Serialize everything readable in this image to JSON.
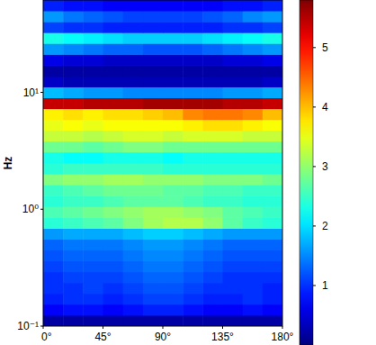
{
  "chart_data": {
    "type": "heatmap",
    "y_label": "Hz",
    "log": "y",
    "x": [
      7.5,
      22.5,
      37.5,
      52.5,
      67.5,
      82.5,
      97.5,
      112.5,
      127.5,
      142.5,
      157.5,
      172.5
    ],
    "y": [
      0.111,
      0.138,
      0.171,
      0.211,
      0.262,
      0.324,
      0.402,
      0.497,
      0.617,
      0.764,
      0.946,
      1.17,
      1.46,
      1.8,
      2.23,
      2.77,
      3.43,
      4.25,
      5.26,
      6.52,
      8.07,
      10.0,
      12.4,
      15.3,
      19.0,
      23.6,
      29.2,
      36.1,
      44.8,
      55.5
    ],
    "xlim": [
      0,
      180
    ],
    "ylim": [
      0.1,
      61.7
    ],
    "xticks": [
      {
        "value": 0,
        "label": "0°"
      },
      {
        "value": 45,
        "label": "45°"
      },
      {
        "value": 90,
        "label": "90°"
      },
      {
        "value": 135,
        "label": "135°"
      },
      {
        "value": 180,
        "label": "180°"
      }
    ],
    "yticks": [
      {
        "value": 0.1,
        "label": "10⁻¹"
      },
      {
        "value": 1,
        "label": "10⁰"
      },
      {
        "value": 10,
        "label": "10¹"
      }
    ],
    "colorbar": {
      "range": [
        0,
        5.8
      ],
      "ticks": [
        1,
        2,
        3,
        4,
        5
      ]
    },
    "values": [
      [
        0.2,
        0.2,
        0.2,
        0.2,
        0.2,
        0.2,
        0.2,
        0.2,
        0.2,
        0.2,
        0.2,
        0.2
      ],
      [
        0.7,
        0.8,
        0.8,
        0.7,
        0.8,
        0.9,
        0.9,
        0.8,
        0.7,
        0.7,
        0.8,
        0.7
      ],
      [
        0.9,
        1.0,
        1.0,
        0.9,
        1.0,
        1.1,
        1.1,
        1.0,
        0.9,
        0.9,
        1.0,
        0.9
      ],
      [
        1.0,
        1.0,
        1.1,
        1.0,
        1.1,
        1.2,
        1.2,
        1.1,
        1.0,
        1.0,
        1.0,
        0.9
      ],
      [
        1.0,
        1.1,
        1.1,
        1.1,
        1.2,
        1.3,
        1.3,
        1.2,
        1.1,
        1.0,
        1.0,
        1.0
      ],
      [
        1.1,
        1.2,
        1.2,
        1.2,
        1.3,
        1.4,
        1.4,
        1.3,
        1.2,
        1.1,
        1.1,
        1.1
      ],
      [
        1.2,
        1.3,
        1.3,
        1.3,
        1.4,
        1.5,
        1.5,
        1.4,
        1.3,
        1.2,
        1.2,
        1.2
      ],
      [
        1.3,
        1.4,
        1.4,
        1.4,
        1.5,
        1.6,
        1.6,
        1.5,
        1.4,
        1.3,
        1.3,
        1.3
      ],
      [
        1.6,
        1.7,
        1.7,
        1.7,
        1.8,
        1.9,
        1.9,
        1.8,
        1.7,
        1.6,
        1.6,
        1.6
      ],
      [
        2.4,
        2.5,
        2.6,
        2.7,
        2.9,
        3.1,
        3.2,
        3.2,
        3.0,
        2.7,
        2.5,
        2.4
      ],
      [
        2.6,
        2.7,
        2.8,
        2.9,
        3.0,
        3.1,
        3.1,
        3.0,
        2.9,
        2.7,
        2.6,
        2.5
      ],
      [
        2.4,
        2.5,
        2.5,
        2.6,
        2.7,
        2.7,
        2.7,
        2.6,
        2.5,
        2.5,
        2.4,
        2.4
      ],
      [
        2.5,
        2.6,
        2.7,
        2.8,
        2.8,
        2.8,
        2.7,
        2.7,
        2.6,
        2.6,
        2.5,
        2.5
      ],
      [
        2.9,
        3.0,
        3.0,
        3.1,
        3.1,
        3.0,
        3.0,
        3.0,
        2.9,
        2.9,
        2.9,
        2.8
      ],
      [
        2.4,
        2.5,
        2.5,
        2.5,
        2.5,
        2.5,
        2.4,
        2.4,
        2.4,
        2.4,
        2.4,
        2.4
      ],
      [
        2.3,
        2.2,
        2.2,
        2.3,
        2.3,
        2.3,
        2.2,
        2.3,
        2.3,
        2.3,
        2.3,
        2.3
      ],
      [
        2.8,
        2.8,
        2.7,
        2.8,
        2.9,
        2.9,
        2.8,
        2.8,
        2.8,
        2.8,
        2.8,
        2.8
      ],
      [
        3.3,
        3.3,
        3.2,
        3.3,
        3.4,
        3.4,
        3.3,
        3.4,
        3.4,
        3.4,
        3.3,
        3.3
      ],
      [
        3.5,
        3.6,
        3.5,
        3.6,
        3.6,
        3.6,
        3.6,
        3.7,
        3.8,
        3.8,
        3.7,
        3.6
      ],
      [
        3.7,
        3.8,
        3.7,
        3.8,
        3.8,
        3.9,
        4.0,
        4.3,
        4.4,
        4.4,
        4.3,
        4.0
      ],
      [
        5.4,
        5.4,
        5.5,
        5.5,
        5.5,
        5.6,
        5.6,
        5.6,
        5.6,
        5.5,
        5.5,
        5.4
      ],
      [
        1.8,
        1.7,
        1.6,
        1.6,
        1.5,
        1.5,
        1.5,
        1.5,
        1.5,
        1.6,
        1.6,
        1.7
      ],
      [
        0.4,
        0.3,
        0.3,
        0.3,
        0.3,
        0.3,
        0.3,
        0.3,
        0.3,
        0.3,
        0.3,
        0.4
      ],
      [
        0.2,
        0.2,
        0.2,
        0.2,
        0.2,
        0.2,
        0.2,
        0.2,
        0.2,
        0.2,
        0.2,
        0.2
      ],
      [
        0.6,
        0.5,
        0.5,
        0.4,
        0.4,
        0.4,
        0.4,
        0.4,
        0.4,
        0.5,
        0.5,
        0.6
      ],
      [
        1.6,
        1.5,
        1.4,
        1.3,
        1.3,
        1.2,
        1.2,
        1.2,
        1.3,
        1.4,
        1.5,
        1.6
      ],
      [
        2.3,
        2.2,
        2.1,
        2.0,
        1.9,
        1.9,
        1.9,
        1.9,
        2.0,
        2.1,
        2.2,
        2.3
      ],
      [
        1.1,
        1.0,
        1.0,
        0.9,
        0.9,
        0.9,
        0.9,
        0.9,
        0.9,
        1.0,
        1.0,
        1.1
      ],
      [
        1.6,
        1.4,
        1.3,
        1.2,
        1.1,
        1.1,
        1.1,
        1.1,
        1.2,
        1.3,
        1.5,
        1.6
      ],
      [
        0.9,
        0.8,
        0.8,
        0.7,
        0.7,
        0.7,
        0.7,
        0.7,
        0.7,
        0.8,
        0.8,
        0.9
      ]
    ]
  }
}
